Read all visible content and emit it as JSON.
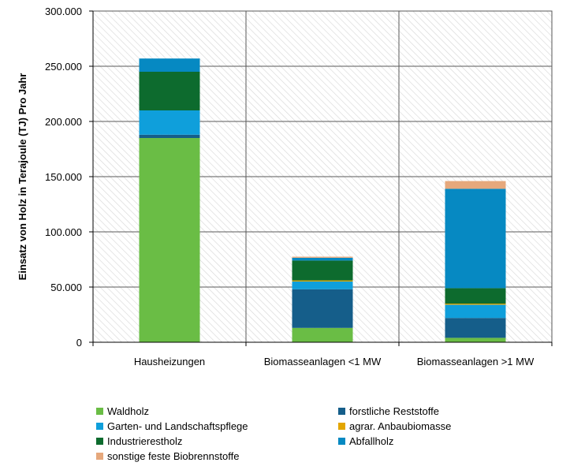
{
  "chart_data": {
    "type": "bar",
    "stacked": true,
    "title": "",
    "xlabel": "",
    "ylabel": "Einsatz von Holz in Terajoule (TJ) Pro Jahr",
    "ylim": [
      0,
      300000
    ],
    "yticks": [
      0,
      50000,
      100000,
      150000,
      200000,
      250000,
      300000
    ],
    "ytick_labels": [
      "0",
      "50.000",
      "100.000",
      "150.000",
      "200.000",
      "250.000",
      "300.000"
    ],
    "grid": true,
    "legend_position": "bottom",
    "categories": [
      "Hausheizungen",
      "Biomasseanlagen <1 MW",
      "Biomasseanlagen >1 MW"
    ],
    "series": [
      {
        "name": "Waldholz",
        "color": "#6abd45",
        "values": [
          185000,
          13000,
          4000
        ]
      },
      {
        "name": "forstliche Reststoffe",
        "color": "#155e8a",
        "values": [
          3000,
          35000,
          18000
        ]
      },
      {
        "name": "Garten- und Landschaftspflege",
        "color": "#0f9fdb",
        "values": [
          22000,
          7000,
          12000
        ]
      },
      {
        "name": "agrar. Anbaubiomasse",
        "color": "#e3a600",
        "values": [
          0,
          1000,
          1000
        ]
      },
      {
        "name": "Industrierestholz",
        "color": "#0d6b2e",
        "values": [
          35000,
          18000,
          14000
        ]
      },
      {
        "name": "Abfallholz",
        "color": "#0689c2",
        "values": [
          12000,
          2500,
          90000
        ]
      },
      {
        "name": "sonstige feste Biobrennstoffe",
        "color": "#e6a87c",
        "values": [
          0,
          1000,
          7000
        ]
      }
    ],
    "legend_order": [
      "Waldholz",
      "forstliche Reststoffe",
      "Garten- und Landschaftspflege",
      "agrar. Anbaubiomasse",
      "Industrierestholz",
      "Abfallholz",
      "sonstige feste Biobrennstoffe"
    ]
  }
}
